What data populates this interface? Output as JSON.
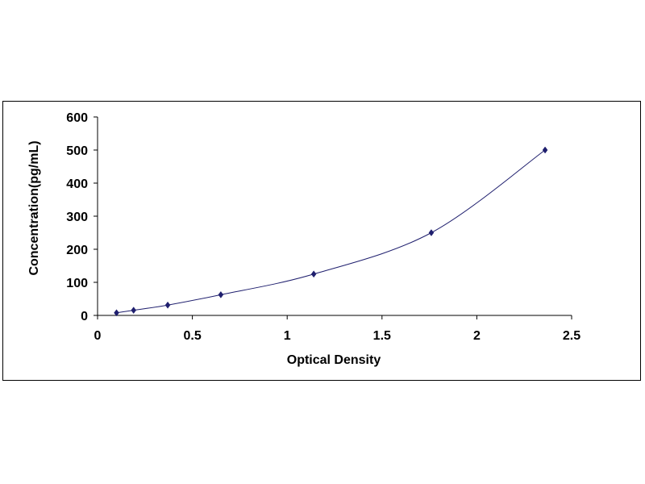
{
  "chart_data": {
    "type": "scatter",
    "title": "",
    "xlabel": "Optical Density",
    "ylabel": "Concentration(pg/mL)",
    "xlim": [
      0,
      2.5
    ],
    "ylim": [
      0,
      600
    ],
    "x_ticks": [
      0,
      0.5,
      1,
      1.5,
      2,
      2.5
    ],
    "x_tick_labels": [
      "0",
      "0.5",
      "1",
      "1.5",
      "2",
      "2.5"
    ],
    "y_ticks": [
      0,
      100,
      200,
      300,
      400,
      500,
      600
    ],
    "y_tick_labels": [
      "0",
      "100",
      "200",
      "300",
      "400",
      "500",
      "600"
    ],
    "grid": false,
    "legend": "none",
    "series": [
      {
        "x": [
          0.1,
          0.19,
          0.37,
          0.65,
          1.14,
          1.76,
          2.36
        ],
        "y": [
          7.8,
          15.6,
          31.2,
          62.5,
          125,
          250,
          500
        ],
        "marker": "diamond",
        "color": "#1f1f6e",
        "fit_line": true
      }
    ]
  }
}
